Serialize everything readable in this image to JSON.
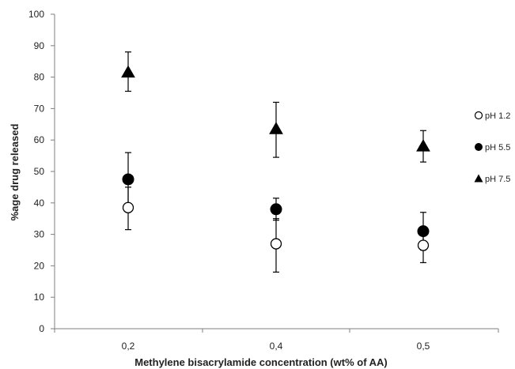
{
  "chart_data": {
    "type": "scatter",
    "categories": [
      "0,2",
      "0,4",
      "0,5"
    ],
    "xlabel": "Methylene bisacrylamide concentration (wt% of AA)",
    "ylabel": "%age drug released",
    "ylim": [
      0,
      100
    ],
    "yticks": [
      "0",
      "10",
      "20",
      "30",
      "40",
      "50",
      "60",
      "70",
      "80",
      "90",
      "100"
    ],
    "grid": false,
    "legend_position": "right",
    "error_bars": true,
    "series": [
      {
        "name": "pH 1.2",
        "marker": "open-circle",
        "values": [
          38.5,
          27,
          26.5
        ],
        "err_low": [
          31.5,
          18,
          21
        ],
        "err_high": [
          45,
          35,
          32
        ]
      },
      {
        "name": "pH 5.5",
        "marker": "filled-circle",
        "values": [
          47.5,
          38,
          31
        ],
        "err_low": [
          39,
          34.5,
          25
        ],
        "err_high": [
          56,
          41.5,
          37
        ]
      },
      {
        "name": "pH 7.5",
        "marker": "filled-triangle",
        "values": [
          81.5,
          63.5,
          58
        ],
        "err_low": [
          75.5,
          54.5,
          53
        ],
        "err_high": [
          88,
          72,
          63
        ]
      }
    ]
  }
}
